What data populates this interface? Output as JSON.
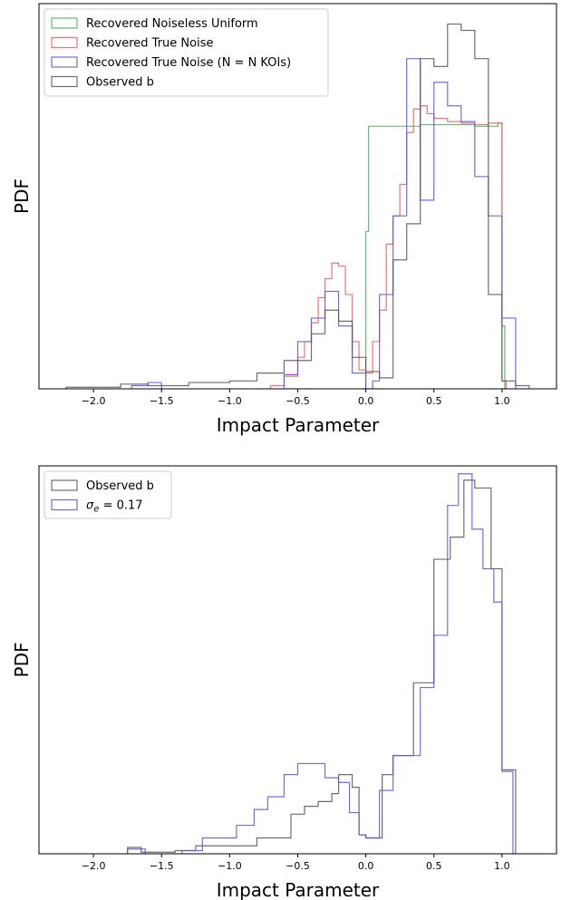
{
  "chart_data": [
    {
      "type": "histogram",
      "xlabel": "Impact Parameter",
      "ylabel": "PDF",
      "xlim": [
        -2.4,
        1.4
      ],
      "ylim": [
        0,
        2.45
      ],
      "xticks": [
        -2.0,
        -1.5,
        -1.0,
        -0.5,
        0.0,
        0.5,
        1.0
      ],
      "xtick_labels": [
        "−2.0",
        "−1.5",
        "−1.0",
        "−0.5",
        "0.0",
        "0.5",
        "1.0"
      ],
      "legend_position": "top-left",
      "legend": [
        "Recovered Noiseless Uniform",
        "Recovered True Noise",
        "Recovered True Noise (N = N KOIs)",
        "Observed b"
      ],
      "series": [
        {
          "name": "Recovered Noiseless Uniform",
          "color": "#4caf50",
          "bins_x": [
            -0.02,
            0.0,
            0.02,
            1.0,
            1.02
          ],
          "bins_y": [
            0,
            1.0,
            1.67,
            0.4,
            0
          ],
          "steps": [
            [
              -0.02,
              0.0,
              0
            ],
            [
              0.0,
              0.02,
              1.0
            ],
            [
              0.02,
              0.2,
              1.67
            ],
            [
              0.2,
              0.4,
              1.67
            ],
            [
              0.4,
              0.6,
              1.68
            ],
            [
              0.6,
              0.8,
              1.68
            ],
            [
              0.8,
              0.97,
              1.67
            ],
            [
              0.97,
              1.0,
              1.69
            ],
            [
              1.0,
              1.02,
              0.4
            ]
          ]
        },
        {
          "name": "Recovered True Noise",
          "color": "#f45b5b",
          "steps": [
            [
              -0.7,
              -0.6,
              0.02
            ],
            [
              -0.6,
              -0.5,
              0.08
            ],
            [
              -0.5,
              -0.45,
              0.2
            ],
            [
              -0.45,
              -0.4,
              0.3
            ],
            [
              -0.4,
              -0.35,
              0.42
            ],
            [
              -0.35,
              -0.3,
              0.58
            ],
            [
              -0.3,
              -0.25,
              0.7
            ],
            [
              -0.25,
              -0.2,
              0.8
            ],
            [
              -0.2,
              -0.15,
              0.78
            ],
            [
              -0.15,
              -0.1,
              0.6
            ],
            [
              -0.1,
              -0.05,
              0.3
            ],
            [
              -0.05,
              0.0,
              0.12
            ],
            [
              0.0,
              0.05,
              0.1
            ],
            [
              0.05,
              0.1,
              0.3
            ],
            [
              0.1,
              0.15,
              0.5
            ],
            [
              0.15,
              0.2,
              0.92
            ],
            [
              0.2,
              0.25,
              1.1
            ],
            [
              0.25,
              0.3,
              1.3
            ],
            [
              0.3,
              0.35,
              1.63
            ],
            [
              0.35,
              0.4,
              1.78
            ],
            [
              0.4,
              0.45,
              1.8
            ],
            [
              0.45,
              0.5,
              1.75
            ],
            [
              0.5,
              0.6,
              1.72
            ],
            [
              0.6,
              0.7,
              1.7
            ],
            [
              0.7,
              0.8,
              1.69
            ],
            [
              0.8,
              0.9,
              1.68
            ],
            [
              0.9,
              1.0,
              1.69
            ],
            [
              1.0,
              1.03,
              0.05
            ]
          ]
        },
        {
          "name": "Recovered True Noise (N = N KOIs)",
          "color": "#5555e6",
          "steps": [
            [
              -1.72,
              -1.6,
              0.02
            ],
            [
              -1.6,
              -1.5,
              0.04
            ],
            [
              -0.6,
              -0.5,
              0.09
            ],
            [
              -0.5,
              -0.4,
              0.3
            ],
            [
              -0.4,
              -0.3,
              0.45
            ],
            [
              -0.3,
              -0.2,
              0.62
            ],
            [
              -0.2,
              -0.1,
              0.4
            ],
            [
              -0.1,
              0.0,
              0.1
            ],
            [
              0.0,
              0.05,
              0.0
            ],
            [
              0.05,
              0.1,
              0.05
            ],
            [
              0.1,
              0.2,
              0.6
            ],
            [
              0.2,
              0.3,
              1.1
            ],
            [
              0.3,
              0.4,
              2.1
            ],
            [
              0.4,
              0.5,
              1.2
            ],
            [
              0.5,
              0.6,
              1.95
            ],
            [
              0.6,
              0.7,
              1.8
            ],
            [
              0.7,
              0.8,
              1.7
            ],
            [
              0.8,
              0.9,
              1.35
            ],
            [
              0.9,
              1.0,
              1.1
            ],
            [
              1.0,
              1.1,
              0.45
            ]
          ]
        },
        {
          "name": "Observed b",
          "color": "#555555",
          "steps": [
            [
              -2.2,
              -1.8,
              0.01
            ],
            [
              -1.8,
              -1.6,
              0.03
            ],
            [
              -1.6,
              -1.3,
              0.02
            ],
            [
              -1.3,
              -1.0,
              0.04
            ],
            [
              -1.0,
              -0.8,
              0.05
            ],
            [
              -0.8,
              -0.6,
              0.1
            ],
            [
              -0.6,
              -0.4,
              0.18
            ],
            [
              -0.4,
              -0.3,
              0.35
            ],
            [
              -0.3,
              -0.2,
              0.5
            ],
            [
              -0.2,
              -0.1,
              0.43
            ],
            [
              -0.1,
              0.0,
              0.2
            ],
            [
              0.0,
              0.1,
              0.11
            ],
            [
              0.1,
              0.2,
              0.07
            ],
            [
              0.2,
              0.3,
              0.82
            ],
            [
              0.3,
              0.4,
              1.05
            ],
            [
              0.4,
              0.5,
              2.1
            ],
            [
              0.5,
              0.6,
              2.05
            ],
            [
              0.6,
              0.7,
              2.32
            ],
            [
              0.7,
              0.8,
              2.28
            ],
            [
              0.8,
              0.9,
              2.1
            ],
            [
              0.9,
              1.0,
              0.6
            ],
            [
              1.0,
              1.1,
              0.05
            ],
            [
              1.1,
              1.2,
              0.02
            ]
          ]
        }
      ]
    },
    {
      "type": "histogram",
      "xlabel": "Impact Parameter",
      "ylabel": "PDF",
      "xlim": [
        -2.4,
        1.4
      ],
      "ylim": [
        0,
        2.45
      ],
      "xticks": [
        -2.0,
        -1.5,
        -1.0,
        -0.5,
        0.0,
        0.5,
        1.0
      ],
      "xtick_labels": [
        "−2.0",
        "−1.5",
        "−1.0",
        "−0.5",
        "0.0",
        "0.5",
        "1.0"
      ],
      "legend_position": "top-left",
      "legend": [
        "Observed b",
        "σe = 0.17"
      ],
      "series": [
        {
          "name": "Observed b",
          "color": "#555555",
          "steps": [
            [
              -1.75,
              -1.65,
              0.04
            ],
            [
              -1.65,
              -1.4,
              0.01
            ],
            [
              -1.4,
              -1.25,
              0.02
            ],
            [
              -1.25,
              -0.8,
              0.05
            ],
            [
              -0.8,
              -0.55,
              0.1
            ],
            [
              -0.55,
              -0.45,
              0.25
            ],
            [
              -0.45,
              -0.35,
              0.3
            ],
            [
              -0.35,
              -0.25,
              0.33
            ],
            [
              -0.25,
              -0.2,
              0.38
            ],
            [
              -0.2,
              -0.1,
              0.5
            ],
            [
              -0.1,
              -0.05,
              0.42
            ],
            [
              -0.05,
              0.0,
              0.12
            ],
            [
              0.0,
              0.12,
              0.1
            ],
            [
              0.12,
              0.2,
              0.5
            ],
            [
              0.2,
              0.35,
              0.62
            ],
            [
              0.35,
              0.5,
              1.08
            ],
            [
              0.5,
              0.62,
              1.86
            ],
            [
              0.62,
              0.72,
              2.0
            ],
            [
              0.72,
              0.8,
              2.36
            ],
            [
              0.8,
              0.92,
              2.31
            ],
            [
              0.92,
              1.0,
              1.8
            ],
            [
              1.0,
              1.1,
              0.53
            ]
          ]
        },
        {
          "name": "σe = 0.17",
          "color": "#5555e6",
          "steps": [
            [
              -1.75,
              -1.62,
              0.03
            ],
            [
              -1.35,
              -1.2,
              0.02
            ],
            [
              -1.2,
              -0.95,
              0.1
            ],
            [
              -0.95,
              -0.82,
              0.18
            ],
            [
              -0.82,
              -0.72,
              0.28
            ],
            [
              -0.72,
              -0.6,
              0.36
            ],
            [
              -0.6,
              -0.5,
              0.5
            ],
            [
              -0.5,
              -0.3,
              0.57
            ],
            [
              -0.3,
              -0.2,
              0.48
            ],
            [
              -0.2,
              -0.12,
              0.45
            ],
            [
              -0.12,
              -0.05,
              0.26
            ],
            [
              -0.05,
              0.0,
              0.12
            ],
            [
              0.0,
              0.1,
              0.1
            ],
            [
              0.1,
              0.2,
              0.4
            ],
            [
              0.2,
              0.4,
              0.62
            ],
            [
              0.4,
              0.5,
              1.05
            ],
            [
              0.5,
              0.6,
              1.38
            ],
            [
              0.6,
              0.68,
              2.2
            ],
            [
              0.68,
              0.78,
              2.4
            ],
            [
              0.78,
              0.86,
              2.05
            ],
            [
              0.86,
              0.94,
              1.8
            ],
            [
              0.94,
              1.0,
              1.59
            ],
            [
              1.0,
              1.08,
              0.52
            ]
          ]
        }
      ]
    }
  ]
}
